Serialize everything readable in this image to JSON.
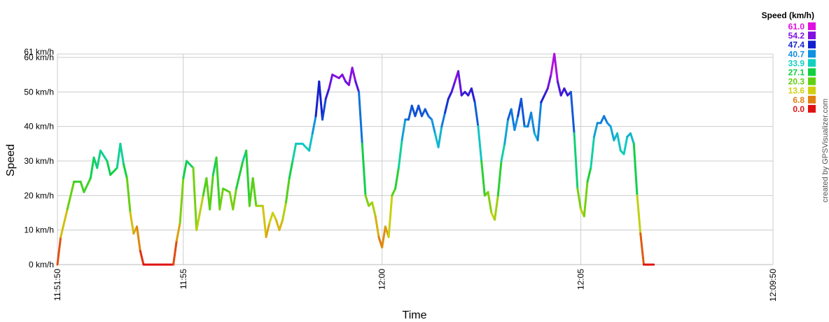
{
  "chart_data": {
    "type": "line",
    "title": "",
    "xlabel": "Time",
    "ylabel": "Speed",
    "xlim": [
      "11:51:50",
      "12:09:50"
    ],
    "ylim": [
      0,
      61
    ],
    "ylim_label": "61 km/h",
    "yticks": [
      "0 km/h",
      "10 km/h",
      "20 km/h",
      "30 km/h",
      "40 km/h",
      "50 km/h",
      "60 km/h"
    ],
    "ytick_values": [
      0,
      10,
      20,
      30,
      40,
      50,
      60
    ],
    "xticks": [
      "11:51:50",
      "11:55",
      "12:00",
      "12:05",
      "12:09:50"
    ],
    "grid": true,
    "legend": {
      "title": "Speed (km/h)",
      "placement": "top-right",
      "entries": [
        {
          "label": "61.0",
          "color": "#e010e0"
        },
        {
          "label": "54.2",
          "color": "#8010e0"
        },
        {
          "label": "47.4",
          "color": "#1020d0"
        },
        {
          "label": "40.7",
          "color": "#1090e0"
        },
        {
          "label": "33.9",
          "color": "#10d0c0"
        },
        {
          "label": "27.1",
          "color": "#10d040"
        },
        {
          "label": "20.3",
          "color": "#60d010"
        },
        {
          "label": "13.6",
          "color": "#d0d010"
        },
        {
          "label": "6.8",
          "color": "#e08010"
        },
        {
          "label": "0.0",
          "color": "#e01010"
        }
      ]
    },
    "credit": "created by GPSVisualizer.com",
    "series": [
      {
        "points": [
          [
            "11:51:50",
            0
          ],
          [
            "11:51:55",
            8
          ],
          [
            "11:52:05",
            16
          ],
          [
            "11:52:15",
            24
          ],
          [
            "11:52:25",
            24
          ],
          [
            "11:52:30",
            21
          ],
          [
            "11:52:40",
            25
          ],
          [
            "11:52:45",
            31
          ],
          [
            "11:52:50",
            28
          ],
          [
            "11:52:55",
            33
          ],
          [
            "11:53:05",
            30
          ],
          [
            "11:53:10",
            26
          ],
          [
            "11:53:20",
            28
          ],
          [
            "11:53:25",
            35
          ],
          [
            "11:53:30",
            29
          ],
          [
            "11:53:35",
            25
          ],
          [
            "11:53:40",
            15
          ],
          [
            "11:53:45",
            9
          ],
          [
            "11:53:50",
            11
          ],
          [
            "11:53:55",
            4
          ],
          [
            "11:54:00",
            0
          ],
          [
            "11:54:45",
            0
          ],
          [
            "11:54:50",
            7
          ],
          [
            "11:54:55",
            12
          ],
          [
            "11:55:00",
            25
          ],
          [
            "11:55:05",
            30
          ],
          [
            "11:55:15",
            28
          ],
          [
            "11:55:20",
            10
          ],
          [
            "11:55:30",
            20
          ],
          [
            "11:55:35",
            25
          ],
          [
            "11:55:40",
            16
          ],
          [
            "11:55:45",
            26
          ],
          [
            "11:55:50",
            31
          ],
          [
            "11:55:55",
            16
          ],
          [
            "11:56:00",
            22
          ],
          [
            "11:56:10",
            21
          ],
          [
            "11:56:15",
            16
          ],
          [
            "11:56:20",
            22
          ],
          [
            "11:56:30",
            30
          ],
          [
            "11:56:35",
            33
          ],
          [
            "11:56:40",
            17
          ],
          [
            "11:56:45",
            25
          ],
          [
            "11:56:50",
            17
          ],
          [
            "11:57:00",
            17
          ],
          [
            "11:57:05",
            8
          ],
          [
            "11:57:10",
            12
          ],
          [
            "11:57:15",
            15
          ],
          [
            "11:57:20",
            13
          ],
          [
            "11:57:25",
            10
          ],
          [
            "11:57:30",
            13
          ],
          [
            "11:57:35",
            18
          ],
          [
            "11:57:40",
            25
          ],
          [
            "11:57:45",
            30
          ],
          [
            "11:57:50",
            35
          ],
          [
            "11:58:00",
            35
          ],
          [
            "11:58:05",
            34
          ],
          [
            "11:58:10",
            33
          ],
          [
            "11:58:15",
            38
          ],
          [
            "11:58:20",
            43
          ],
          [
            "11:58:25",
            53
          ],
          [
            "11:58:30",
            42
          ],
          [
            "11:58:35",
            48
          ],
          [
            "11:58:40",
            51
          ],
          [
            "11:58:45",
            55
          ],
          [
            "11:58:55",
            54
          ],
          [
            "11:59:00",
            55
          ],
          [
            "11:59:05",
            53
          ],
          [
            "11:59:10",
            52
          ],
          [
            "11:59:15",
            57
          ],
          [
            "11:59:20",
            53
          ],
          [
            "11:59:25",
            50
          ],
          [
            "11:59:30",
            35
          ],
          [
            "11:59:35",
            20
          ],
          [
            "11:59:40",
            17
          ],
          [
            "11:59:45",
            18
          ],
          [
            "11:59:50",
            14
          ],
          [
            "11:59:55",
            8
          ],
          [
            "12:00:00",
            5
          ],
          [
            "12:00:05",
            11
          ],
          [
            "12:00:10",
            8
          ],
          [
            "12:00:15",
            20
          ],
          [
            "12:00:20",
            22
          ],
          [
            "12:00:25",
            28
          ],
          [
            "12:00:30",
            36
          ],
          [
            "12:00:35",
            42
          ],
          [
            "12:00:40",
            42
          ],
          [
            "12:00:45",
            46
          ],
          [
            "12:00:50",
            43
          ],
          [
            "12:00:55",
            46
          ],
          [
            "12:01:00",
            43
          ],
          [
            "12:01:05",
            45
          ],
          [
            "12:01:10",
            43
          ],
          [
            "12:01:15",
            42
          ],
          [
            "12:01:20",
            38
          ],
          [
            "12:01:25",
            34
          ],
          [
            "12:01:30",
            40
          ],
          [
            "12:01:35",
            44
          ],
          [
            "12:01:40",
            48
          ],
          [
            "12:01:45",
            50
          ],
          [
            "12:01:50",
            53
          ],
          [
            "12:01:55",
            56
          ],
          [
            "12:02:00",
            49
          ],
          [
            "12:02:05",
            50
          ],
          [
            "12:02:10",
            49
          ],
          [
            "12:02:15",
            51
          ],
          [
            "12:02:20",
            47
          ],
          [
            "12:02:25",
            40
          ],
          [
            "12:02:30",
            30
          ],
          [
            "12:02:35",
            20
          ],
          [
            "12:02:40",
            21
          ],
          [
            "12:02:45",
            15
          ],
          [
            "12:02:50",
            13
          ],
          [
            "12:02:55",
            20
          ],
          [
            "12:03:00",
            30
          ],
          [
            "12:03:05",
            35
          ],
          [
            "12:03:10",
            42
          ],
          [
            "12:03:15",
            45
          ],
          [
            "12:03:20",
            39
          ],
          [
            "12:03:25",
            43
          ],
          [
            "12:03:30",
            48
          ],
          [
            "12:03:35",
            40
          ],
          [
            "12:03:40",
            40
          ],
          [
            "12:03:45",
            44
          ],
          [
            "12:03:50",
            38
          ],
          [
            "12:03:55",
            36
          ],
          [
            "12:04:00",
            47
          ],
          [
            "12:04:05",
            49
          ],
          [
            "12:04:10",
            51
          ],
          [
            "12:04:15",
            55
          ],
          [
            "12:04:20",
            61
          ],
          [
            "12:04:25",
            53
          ],
          [
            "12:04:30",
            49
          ],
          [
            "12:04:35",
            51
          ],
          [
            "12:04:40",
            49
          ],
          [
            "12:04:45",
            50
          ],
          [
            "12:04:50",
            38
          ],
          [
            "12:04:55",
            22
          ],
          [
            "12:05:00",
            16
          ],
          [
            "12:05:05",
            14
          ],
          [
            "12:05:10",
            24
          ],
          [
            "12:05:15",
            28
          ],
          [
            "12:05:20",
            37
          ],
          [
            "12:05:25",
            41
          ],
          [
            "12:05:30",
            41
          ],
          [
            "12:05:35",
            43
          ],
          [
            "12:05:40",
            41
          ],
          [
            "12:05:45",
            40
          ],
          [
            "12:05:50",
            36
          ],
          [
            "12:05:55",
            38
          ],
          [
            "12:06:00",
            33
          ],
          [
            "12:06:05",
            32
          ],
          [
            "12:06:10",
            37
          ],
          [
            "12:06:15",
            38
          ],
          [
            "12:06:20",
            35
          ],
          [
            "12:06:25",
            20
          ],
          [
            "12:06:30",
            9
          ],
          [
            "12:06:35",
            0
          ],
          [
            "12:06:50",
            0
          ]
        ]
      }
    ]
  }
}
